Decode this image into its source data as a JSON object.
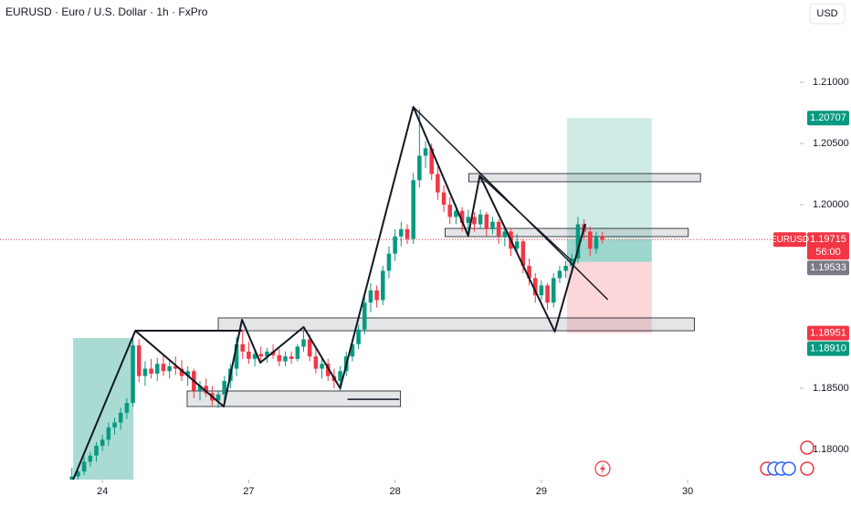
{
  "chart_data": {
    "type": "candlestick",
    "title": "EURUSD · Euro / U.S. Dollar · 1h · FxPro",
    "currency": "USD",
    "up_color": "#089981",
    "down_color": "#f23645",
    "xlim": [
      -16.8,
      114.4
    ],
    "ylim": [
      1.17754,
      1.21672
    ],
    "xticks": [
      {
        "value": 0,
        "label": "24"
      },
      {
        "value": 24,
        "label": "27"
      },
      {
        "value": 48,
        "label": "28"
      },
      {
        "value": 72,
        "label": "29"
      },
      {
        "value": 96,
        "label": "30"
      }
    ],
    "yticks": [
      {
        "value": 1.21,
        "label": "1.21000"
      },
      {
        "value": 1.205,
        "label": "1.20500"
      },
      {
        "value": 1.2,
        "label": "1.20000"
      },
      {
        "value": 1.185,
        "label": "1.18500"
      },
      {
        "value": 1.18,
        "label": "1.18000"
      }
    ],
    "x": [
      -5,
      -4,
      -3,
      -2,
      -1,
      0,
      1,
      2,
      3,
      4,
      5,
      6,
      7,
      8,
      9,
      10,
      11,
      12,
      13,
      14,
      15,
      16,
      17,
      18,
      19,
      20,
      21,
      22,
      23,
      24,
      25,
      26,
      27,
      28,
      29,
      30,
      31,
      32,
      33,
      34,
      35,
      36,
      37,
      38,
      39,
      40,
      41,
      42,
      43,
      44,
      45,
      46,
      47,
      48,
      49,
      50,
      51,
      52,
      53,
      54,
      55,
      56,
      57,
      58,
      59,
      60,
      61,
      62,
      63,
      64,
      65,
      66,
      67,
      68,
      69,
      70,
      71,
      72,
      73,
      74,
      75,
      76,
      77,
      78,
      79,
      80,
      81,
      82
    ],
    "ohlc": [
      [
        1.1775,
        1.1785,
        1.177,
        1.1778
      ],
      [
        1.1778,
        1.1786,
        1.1774,
        1.1782
      ],
      [
        1.1782,
        1.1794,
        1.1779,
        1.179
      ],
      [
        1.179,
        1.1798,
        1.1786,
        1.1795
      ],
      [
        1.1795,
        1.1806,
        1.179,
        1.1803
      ],
      [
        1.1803,
        1.1812,
        1.1799,
        1.1808
      ],
      [
        1.1808,
        1.1822,
        1.1803,
        1.1818
      ],
      [
        1.1818,
        1.1826,
        1.1812,
        1.1822
      ],
      [
        1.1822,
        1.1834,
        1.1816,
        1.183
      ],
      [
        1.183,
        1.1842,
        1.1825,
        1.1838
      ],
      [
        1.1838,
        1.1893,
        1.1835,
        1.1885
      ],
      [
        1.1885,
        1.189,
        1.1855,
        1.186
      ],
      [
        1.186,
        1.1872,
        1.1852,
        1.1866
      ],
      [
        1.1866,
        1.1874,
        1.1858,
        1.1862
      ],
      [
        1.1862,
        1.1875,
        1.1856,
        1.187
      ],
      [
        1.187,
        1.1878,
        1.186,
        1.1864
      ],
      [
        1.1864,
        1.1872,
        1.1858,
        1.1868
      ],
      [
        1.1868,
        1.1876,
        1.1861,
        1.1866
      ],
      [
        1.1866,
        1.1873,
        1.1856,
        1.186
      ],
      [
        1.186,
        1.1868,
        1.1852,
        1.1864
      ],
      [
        1.1864,
        1.1866,
        1.1842,
        1.1848
      ],
      [
        1.1848,
        1.1856,
        1.184,
        1.1852
      ],
      [
        1.1852,
        1.1858,
        1.1843,
        1.1846
      ],
      [
        1.1846,
        1.1852,
        1.1836,
        1.184
      ],
      [
        1.184,
        1.1848,
        1.1834,
        1.1845
      ],
      [
        1.1845,
        1.186,
        1.184,
        1.1856
      ],
      [
        1.1856,
        1.187,
        1.185,
        1.1866
      ],
      [
        1.1866,
        1.1892,
        1.186,
        1.1886
      ],
      [
        1.1886,
        1.1898,
        1.1874,
        1.188
      ],
      [
        1.188,
        1.1888,
        1.187,
        1.1874
      ],
      [
        1.1874,
        1.1882,
        1.1868,
        1.1878
      ],
      [
        1.1878,
        1.1884,
        1.1872,
        1.1876
      ],
      [
        1.1876,
        1.1883,
        1.1871,
        1.188
      ],
      [
        1.188,
        1.1886,
        1.1874,
        1.1877
      ],
      [
        1.1877,
        1.1882,
        1.1868,
        1.1872
      ],
      [
        1.1872,
        1.188,
        1.1868,
        1.1876
      ],
      [
        1.1876,
        1.188,
        1.187,
        1.1874
      ],
      [
        1.1874,
        1.1886,
        1.1872,
        1.1884
      ],
      [
        1.1884,
        1.1898,
        1.188,
        1.189
      ],
      [
        1.189,
        1.1894,
        1.1872,
        1.1876
      ],
      [
        1.1876,
        1.1882,
        1.1862,
        1.1866
      ],
      [
        1.1866,
        1.1874,
        1.1858,
        1.187
      ],
      [
        1.187,
        1.1874,
        1.1856,
        1.186
      ],
      [
        1.186,
        1.1866,
        1.185,
        1.1856
      ],
      [
        1.1856,
        1.1868,
        1.1848,
        1.1864
      ],
      [
        1.1864,
        1.188,
        1.186,
        1.1876
      ],
      [
        1.1876,
        1.189,
        1.1872,
        1.1886
      ],
      [
        1.1886,
        1.1902,
        1.1882,
        1.1898
      ],
      [
        1.1898,
        1.1926,
        1.1894,
        1.192
      ],
      [
        1.192,
        1.1936,
        1.1912,
        1.193
      ],
      [
        1.193,
        1.1934,
        1.1916,
        1.1922
      ],
      [
        1.1922,
        1.195,
        1.1918,
        1.1946
      ],
      [
        1.1946,
        1.1966,
        1.194,
        1.196
      ],
      [
        1.196,
        1.198,
        1.1954,
        1.1974
      ],
      [
        1.1974,
        1.1986,
        1.1966,
        1.198
      ],
      [
        1.198,
        1.1984,
        1.1968,
        1.1972
      ],
      [
        1.1972,
        1.2026,
        1.1968,
        1.202
      ],
      [
        1.202,
        1.2078,
        1.2014,
        1.204
      ],
      [
        1.204,
        1.2052,
        1.203,
        1.2046
      ],
      [
        1.2046,
        1.205,
        1.202,
        1.2025
      ],
      [
        1.2025,
        1.2032,
        1.2004,
        1.201
      ],
      [
        1.201,
        1.2016,
        1.1994,
        1.2
      ],
      [
        1.2,
        1.2006,
        1.1984,
        1.199
      ],
      [
        1.199,
        1.2,
        1.1984,
        1.1995
      ],
      [
        1.1995,
        1.1998,
        1.1978,
        1.1985
      ],
      [
        1.1985,
        1.1996,
        1.1976,
        1.199
      ],
      [
        1.199,
        1.1994,
        1.1978,
        1.1984
      ],
      [
        1.1984,
        1.1996,
        1.198,
        1.1992
      ],
      [
        1.1992,
        1.1994,
        1.1974,
        1.198
      ],
      [
        1.198,
        1.199,
        1.1976,
        1.1986
      ],
      [
        1.1986,
        1.1988,
        1.1968,
        1.1974
      ],
      [
        1.1974,
        1.1982,
        1.1966,
        1.1978
      ],
      [
        1.1978,
        1.198,
        1.1958,
        1.1964
      ],
      [
        1.1964,
        1.1976,
        1.196,
        1.197
      ],
      [
        1.197,
        1.1972,
        1.1944,
        1.195
      ],
      [
        1.195,
        1.1956,
        1.1934,
        1.194
      ],
      [
        1.194,
        1.1944,
        1.192,
        1.1926
      ],
      [
        1.1926,
        1.1938,
        1.1922,
        1.1934
      ],
      [
        1.1934,
        1.1936,
        1.1914,
        1.192
      ],
      [
        1.192,
        1.1944,
        1.1916,
        1.194
      ],
      [
        1.194,
        1.195,
        1.1936,
        1.1946
      ],
      [
        1.1946,
        1.1954,
        1.194,
        1.195
      ],
      [
        1.195,
        1.196,
        1.1946,
        1.1956
      ],
      [
        1.1956,
        1.199,
        1.1952,
        1.1984
      ],
      [
        1.1984,
        1.1988,
        1.1972,
        1.1978
      ],
      [
        1.1978,
        1.1982,
        1.1958,
        1.1964
      ],
      [
        1.1964,
        1.1978,
        1.196,
        1.1974
      ],
      [
        1.1974,
        1.1978,
        1.1968,
        1.19715
      ]
    ],
    "price_labels": [
      {
        "value": 1.20707,
        "color": "#089981"
      },
      {
        "value": 1.19715,
        "color": "#f23645",
        "symbol": "EURUSD",
        "countdown": "56:00"
      },
      {
        "value": 1.19533,
        "color": "#787b86"
      },
      {
        "value": 1.18951,
        "color": "#f23645"
      },
      {
        "value": 1.1891,
        "label": "1.18910",
        "color": "#089981"
      }
    ],
    "zigzag": [
      [
        -4.8,
        1.17754
      ],
      [
        5.4,
        1.1897
      ],
      [
        19.9,
        1.18351
      ],
      [
        22.9,
        1.1906
      ],
      [
        25.9,
        1.18709
      ],
      [
        33,
        1.19
      ],
      [
        39,
        1.185
      ],
      [
        51,
        1.20799
      ],
      [
        60,
        1.19746
      ],
      [
        61.9,
        1.20239
      ],
      [
        74.2,
        1.18963
      ],
      [
        79.2,
        1.19843
      ]
    ],
    "trend_lines": [
      [
        [
          5.4,
          1.1897
        ],
        [
          22.9,
          1.1897
        ]
      ],
      [
        [
          51,
          1.20799
        ],
        [
          82.9,
          1.19224
        ]
      ],
      [
        [
          61.9,
          1.20239
        ],
        [
          76.9,
          1.19545
        ]
      ],
      [
        [
          40.2,
          1.1841
        ],
        [
          48.7,
          1.1841
        ]
      ]
    ],
    "zones": [
      [
        19,
        97.1,
        1.1897,
        1.19075
      ],
      [
        13.9,
        48.9,
        1.18351,
        1.18478
      ],
      [
        56.2,
        96.1,
        1.19739,
        1.19806
      ],
      [
        60.1,
        98.1,
        1.20187,
        1.20254
      ]
    ],
    "green_zone": [
      -4.8,
      5.1
    ],
    "position": [
      76.2,
      90.1
    ]
  }
}
